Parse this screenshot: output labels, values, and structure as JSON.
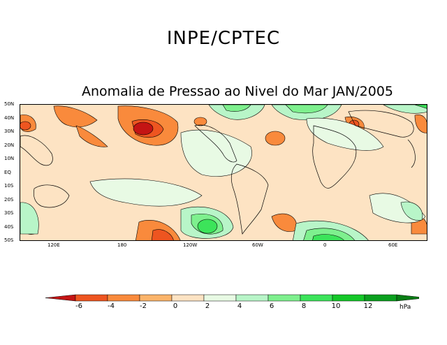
{
  "header": {
    "title": "INPE/CPTEC"
  },
  "map": {
    "title": "Anomalia de Pressao ao Nivel do Mar JAN/2005",
    "lat_labels": [
      "50N",
      "40N",
      "30N",
      "20N",
      "10N",
      "EQ",
      "10S",
      "20S",
      "30S",
      "40S",
      "50S"
    ],
    "lon_labels": [
      "120E",
      "180",
      "120W",
      "60W",
      "0",
      "60E"
    ]
  },
  "legend": {
    "unit": "hPa",
    "labels": [
      "-6",
      "-4",
      "-2",
      "0",
      "2",
      "4",
      "6",
      "8",
      "10",
      "12"
    ],
    "colors": [
      "#c41414",
      "#ee5520",
      "#f98a3c",
      "#fbb46a",
      "#fde3c3",
      "#e8fae4",
      "#b8f5c8",
      "#7ef08e",
      "#3ce45a",
      "#14c828",
      "#0aa01e",
      "#087d14"
    ]
  }
}
